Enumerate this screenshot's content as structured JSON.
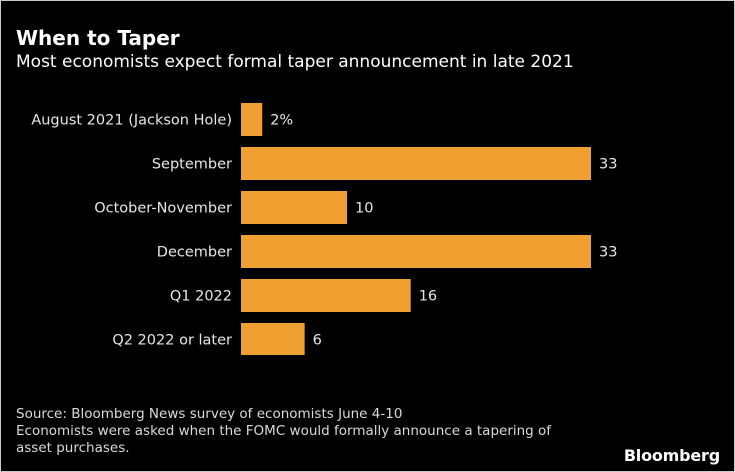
{
  "title": "When to Taper",
  "subtitle": "Most economists expect formal taper announcement in late 2021",
  "source_lines": [
    "Source: Bloomberg News survey of economists June 4-10",
    "Economists were asked when the FOMC would formally announce a tapering of",
    "asset purchases."
  ],
  "brand": "Bloomberg",
  "colors": {
    "background": "#000000",
    "bar": "#f0a030",
    "text": "#ffffff"
  },
  "chart_data": {
    "type": "bar",
    "orientation": "horizontal",
    "categories": [
      "August 2021 (Jackson Hole)",
      "September",
      "October-November",
      "December",
      "Q1 2022",
      "Q2 2022 or later"
    ],
    "values": [
      2,
      33,
      10,
      33,
      16,
      6
    ],
    "value_labels": [
      "2%",
      "33",
      "10",
      "33",
      "16",
      "6"
    ],
    "title": "When to Taper",
    "subtitle": "Most economists expect formal taper announcement in late 2021",
    "xlim": [
      0,
      33
    ],
    "grid": false,
    "axes_visible": false
  }
}
